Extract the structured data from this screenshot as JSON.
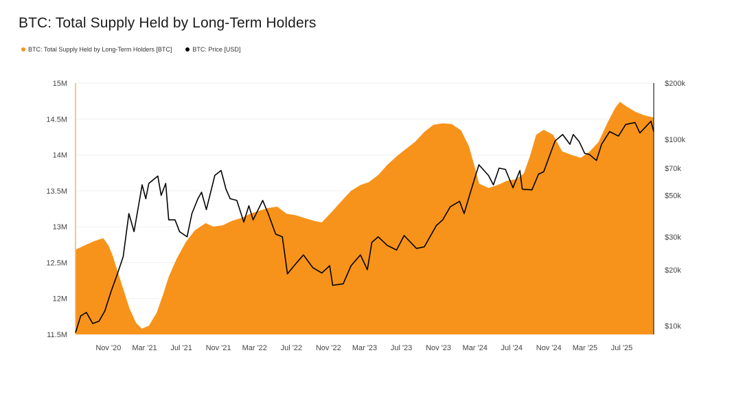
{
  "title": "BTC: Total Supply Held by Long-Term Holders",
  "legend": [
    {
      "label": "BTC: Total Supply Held by Long-Term Holders [BTC]",
      "color": "#f7931a"
    },
    {
      "label": "BTC: Price [USD]",
      "color": "#000000"
    }
  ],
  "chart_data": {
    "type": "area",
    "title": "BTC: Total Supply Held by Long-Term Holders",
    "x_ticks": [
      "Nov '20",
      "Mar '21",
      "Jul '21",
      "Nov '21",
      "Mar '22",
      "Jul '22",
      "Nov '22",
      "Mar '23",
      "Jul '23",
      "Nov '23",
      "Mar '24",
      "Jul '24",
      "Nov '24",
      "Mar '25",
      "Jul '25"
    ],
    "y_left_ticks": [
      "15M",
      "14.5M",
      "14M",
      "13.5M",
      "13M",
      "12.5M",
      "12M",
      "11.5M"
    ],
    "y_left_range": [
      11.5,
      15.0
    ],
    "y_left_unit": "M BTC",
    "y_right_ticks": [
      "$200k",
      "$100k",
      "$70k",
      "$50k",
      "$30k",
      "$20k",
      "$10k"
    ],
    "y_right_range": [
      9000,
      200000
    ],
    "y_right_scale": "log",
    "x_range": [
      "2020-07-15",
      "2025-10-15"
    ],
    "series": [
      {
        "name": "BTC: Total Supply Held by Long-Term Holders [BTC]",
        "color": "#f7931a",
        "type": "area",
        "axis": "left",
        "points": [
          [
            "2020-07-15",
            12.68
          ],
          [
            "2020-08-15",
            12.74
          ],
          [
            "2020-09-15",
            12.8
          ],
          [
            "2020-10-15",
            12.84
          ],
          [
            "2020-11-01",
            12.74
          ],
          [
            "2020-11-15",
            12.6
          ],
          [
            "2020-12-15",
            12.2
          ],
          [
            "2021-01-10",
            11.86
          ],
          [
            "2021-02-01",
            11.66
          ],
          [
            "2021-02-20",
            11.58
          ],
          [
            "2021-03-15",
            11.62
          ],
          [
            "2021-04-10",
            11.8
          ],
          [
            "2021-05-01",
            12.05
          ],
          [
            "2021-05-20",
            12.3
          ],
          [
            "2021-06-15",
            12.55
          ],
          [
            "2021-07-15",
            12.78
          ],
          [
            "2021-08-15",
            12.95
          ],
          [
            "2021-09-20",
            13.05
          ],
          [
            "2021-10-15",
            13.0
          ],
          [
            "2021-11-15",
            13.02
          ],
          [
            "2021-12-15",
            13.08
          ],
          [
            "2022-01-15",
            13.12
          ],
          [
            "2022-02-15",
            13.18
          ],
          [
            "2022-03-15",
            13.22
          ],
          [
            "2022-04-15",
            13.26
          ],
          [
            "2022-05-15",
            13.28
          ],
          [
            "2022-06-15",
            13.18
          ],
          [
            "2022-07-15",
            13.16
          ],
          [
            "2022-08-15",
            13.12
          ],
          [
            "2022-09-15",
            13.08
          ],
          [
            "2022-10-10",
            13.06
          ],
          [
            "2022-11-15",
            13.22
          ],
          [
            "2022-12-15",
            13.36
          ],
          [
            "2023-01-15",
            13.5
          ],
          [
            "2023-02-15",
            13.58
          ],
          [
            "2023-03-15",
            13.62
          ],
          [
            "2023-04-15",
            13.72
          ],
          [
            "2023-05-15",
            13.86
          ],
          [
            "2023-06-15",
            13.98
          ],
          [
            "2023-07-15",
            14.08
          ],
          [
            "2023-08-15",
            14.18
          ],
          [
            "2023-09-15",
            14.32
          ],
          [
            "2023-10-15",
            14.42
          ],
          [
            "2023-11-15",
            14.44
          ],
          [
            "2023-12-15",
            14.43
          ],
          [
            "2024-01-15",
            14.34
          ],
          [
            "2024-02-10",
            14.12
          ],
          [
            "2024-03-01",
            13.82
          ],
          [
            "2024-03-15",
            13.6
          ],
          [
            "2024-04-15",
            13.54
          ],
          [
            "2024-05-15",
            13.58
          ],
          [
            "2024-06-15",
            13.64
          ],
          [
            "2024-07-15",
            13.66
          ],
          [
            "2024-08-10",
            13.74
          ],
          [
            "2024-09-01",
            14.0
          ],
          [
            "2024-09-20",
            14.28
          ],
          [
            "2024-10-15",
            14.35
          ],
          [
            "2024-11-15",
            14.28
          ],
          [
            "2024-12-15",
            14.05
          ],
          [
            "2025-01-15",
            14.0
          ],
          [
            "2025-02-15",
            13.96
          ],
          [
            "2025-03-15",
            14.04
          ],
          [
            "2025-04-15",
            14.18
          ],
          [
            "2025-05-15",
            14.45
          ],
          [
            "2025-06-10",
            14.66
          ],
          [
            "2025-06-25",
            14.74
          ],
          [
            "2025-07-15",
            14.68
          ],
          [
            "2025-08-15",
            14.6
          ],
          [
            "2025-09-15",
            14.55
          ],
          [
            "2025-10-15",
            14.52
          ]
        ]
      },
      {
        "name": "BTC: Price [USD]",
        "color": "#000000",
        "type": "line",
        "axis": "right",
        "points": [
          [
            "2020-07-15",
            9200
          ],
          [
            "2020-08-01",
            11300
          ],
          [
            "2020-08-20",
            11800
          ],
          [
            "2020-09-10",
            10300
          ],
          [
            "2020-10-01",
            10600
          ],
          [
            "2020-10-20",
            12000
          ],
          [
            "2020-11-10",
            15300
          ],
          [
            "2020-12-01",
            19000
          ],
          [
            "2020-12-20",
            23500
          ],
          [
            "2021-01-08",
            40000
          ],
          [
            "2021-01-25",
            32000
          ],
          [
            "2021-02-10",
            45000
          ],
          [
            "2021-02-21",
            57000
          ],
          [
            "2021-03-05",
            48000
          ],
          [
            "2021-03-15",
            58000
          ],
          [
            "2021-04-14",
            63500
          ],
          [
            "2021-04-25",
            50000
          ],
          [
            "2021-05-10",
            58000
          ],
          [
            "2021-05-20",
            37000
          ],
          [
            "2021-06-10",
            37000
          ],
          [
            "2021-06-25",
            32000
          ],
          [
            "2021-07-20",
            30000
          ],
          [
            "2021-08-05",
            40000
          ],
          [
            "2021-08-25",
            48000
          ],
          [
            "2021-09-06",
            52000
          ],
          [
            "2021-09-22",
            42000
          ],
          [
            "2021-10-10",
            55000
          ],
          [
            "2021-10-20",
            64000
          ],
          [
            "2021-11-10",
            68000
          ],
          [
            "2021-11-26",
            54000
          ],
          [
            "2021-12-10",
            48000
          ],
          [
            "2022-01-01",
            47000
          ],
          [
            "2022-01-24",
            36000
          ],
          [
            "2022-02-10",
            44000
          ],
          [
            "2022-02-24",
            37000
          ],
          [
            "2022-03-28",
            47000
          ],
          [
            "2022-04-15",
            40000
          ],
          [
            "2022-05-10",
            31000
          ],
          [
            "2022-06-01",
            30000
          ],
          [
            "2022-06-18",
            19000
          ],
          [
            "2022-07-10",
            21000
          ],
          [
            "2022-08-10",
            24000
          ],
          [
            "2022-09-10",
            20500
          ],
          [
            "2022-10-10",
            19200
          ],
          [
            "2022-11-05",
            21000
          ],
          [
            "2022-11-15",
            16500
          ],
          [
            "2022-12-20",
            16800
          ],
          [
            "2023-01-15",
            21000
          ],
          [
            "2023-02-15",
            24000
          ],
          [
            "2023-03-10",
            20000
          ],
          [
            "2023-03-25",
            28000
          ],
          [
            "2023-04-15",
            30000
          ],
          [
            "2023-05-15",
            27000
          ],
          [
            "2023-06-15",
            25500
          ],
          [
            "2023-07-10",
            30500
          ],
          [
            "2023-08-20",
            26000
          ],
          [
            "2023-09-15",
            26500
          ],
          [
            "2023-10-25",
            34500
          ],
          [
            "2023-11-15",
            37000
          ],
          [
            "2023-12-10",
            43500
          ],
          [
            "2024-01-10",
            46500
          ],
          [
            "2024-01-25",
            40000
          ],
          [
            "2024-02-15",
            52000
          ],
          [
            "2024-03-14",
            73000
          ],
          [
            "2024-04-15",
            64000
          ],
          [
            "2024-05-01",
            57000
          ],
          [
            "2024-05-20",
            70000
          ],
          [
            "2024-06-10",
            69000
          ],
          [
            "2024-07-05",
            55000
          ],
          [
            "2024-07-28",
            68000
          ],
          [
            "2024-08-05",
            54000
          ],
          [
            "2024-09-06",
            53500
          ],
          [
            "2024-09-28",
            65000
          ],
          [
            "2024-10-15",
            67000
          ],
          [
            "2024-11-12",
            89000
          ],
          [
            "2024-11-22",
            98000
          ],
          [
            "2024-12-17",
            106000
          ],
          [
            "2025-01-10",
            94000
          ],
          [
            "2025-01-21",
            106000
          ],
          [
            "2025-02-10",
            97000
          ],
          [
            "2025-02-28",
            84000
          ],
          [
            "2025-03-15",
            83000
          ],
          [
            "2025-04-08",
            77000
          ],
          [
            "2025-04-25",
            94000
          ],
          [
            "2025-05-22",
            110000
          ],
          [
            "2025-06-20",
            104000
          ],
          [
            "2025-07-14",
            120000
          ],
          [
            "2025-08-14",
            123000
          ],
          [
            "2025-08-30",
            108000
          ],
          [
            "2025-09-15",
            115000
          ],
          [
            "2025-10-06",
            125000
          ],
          [
            "2025-10-15",
            110000
          ]
        ]
      }
    ],
    "grid": true,
    "legend_position": "top-left"
  }
}
